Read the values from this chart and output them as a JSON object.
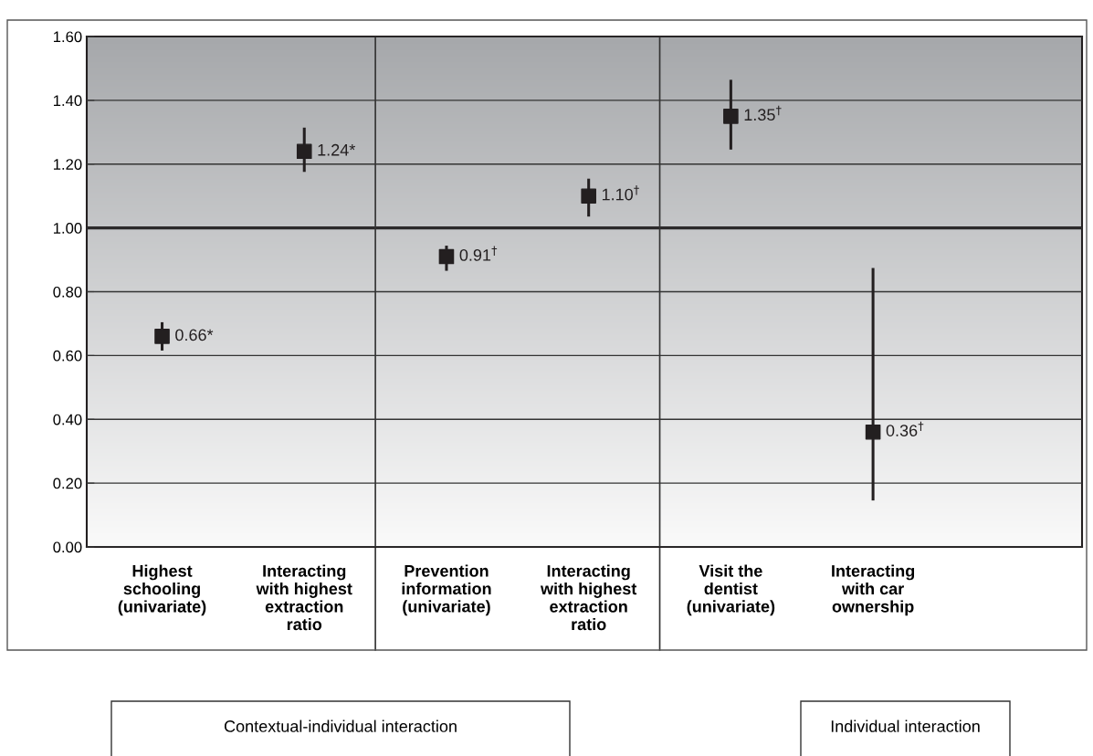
{
  "chart_data": {
    "type": "scatter",
    "categories": [
      "Highest\nschooling\n(univariate)",
      "Interacting\nwith highest\nextraction\nratio",
      "Prevention\ninformation\n(univariate)",
      "Interacting\nwith highest\nextraction\nratio",
      "Visit the\ndentist\n(univariate)",
      "Interacting\nwith car\nownership"
    ],
    "values": [
      0.66,
      1.24,
      0.91,
      1.1,
      1.35,
      0.36
    ],
    "errors": [
      [
        0.62,
        0.7
      ],
      [
        1.18,
        1.31
      ],
      [
        0.87,
        0.94
      ],
      [
        1.04,
        1.15
      ],
      [
        1.25,
        1.46
      ],
      [
        0.15,
        0.87
      ]
    ],
    "value_labels": [
      "0.66*",
      "1.24*",
      "0.91$^{†}$",
      "1.10$^{†}$",
      "1.35$^{†}$",
      "0.36$^{†}$"
    ],
    "color": "#231f20",
    "marker": "square",
    "ylim": [
      0,
      1.6
    ],
    "yticks": [
      {
        "value": 0,
        "label": "0.00"
      },
      {
        "value": 0.2,
        "label": "0.20"
      },
      {
        "value": 0.4,
        "label": "0.40"
      },
      {
        "value": 0.6,
        "label": "0.60"
      },
      {
        "value": 0.8,
        "label": "0.80"
      },
      {
        "value": 1.0,
        "label": "1.00"
      },
      {
        "value": 1.2,
        "label": "1.20"
      },
      {
        "value": 1.4,
        "label": "1.40"
      },
      {
        "value": 1.6,
        "label": "1.60"
      }
    ],
    "grid": "y",
    "ref_lines": [
      {
        "axis": "y",
        "value": 1.0,
        "color": "#231f20"
      }
    ],
    "annotations": [
      "Contextual-individual interaction",
      "Individual interaction"
    ]
  }
}
